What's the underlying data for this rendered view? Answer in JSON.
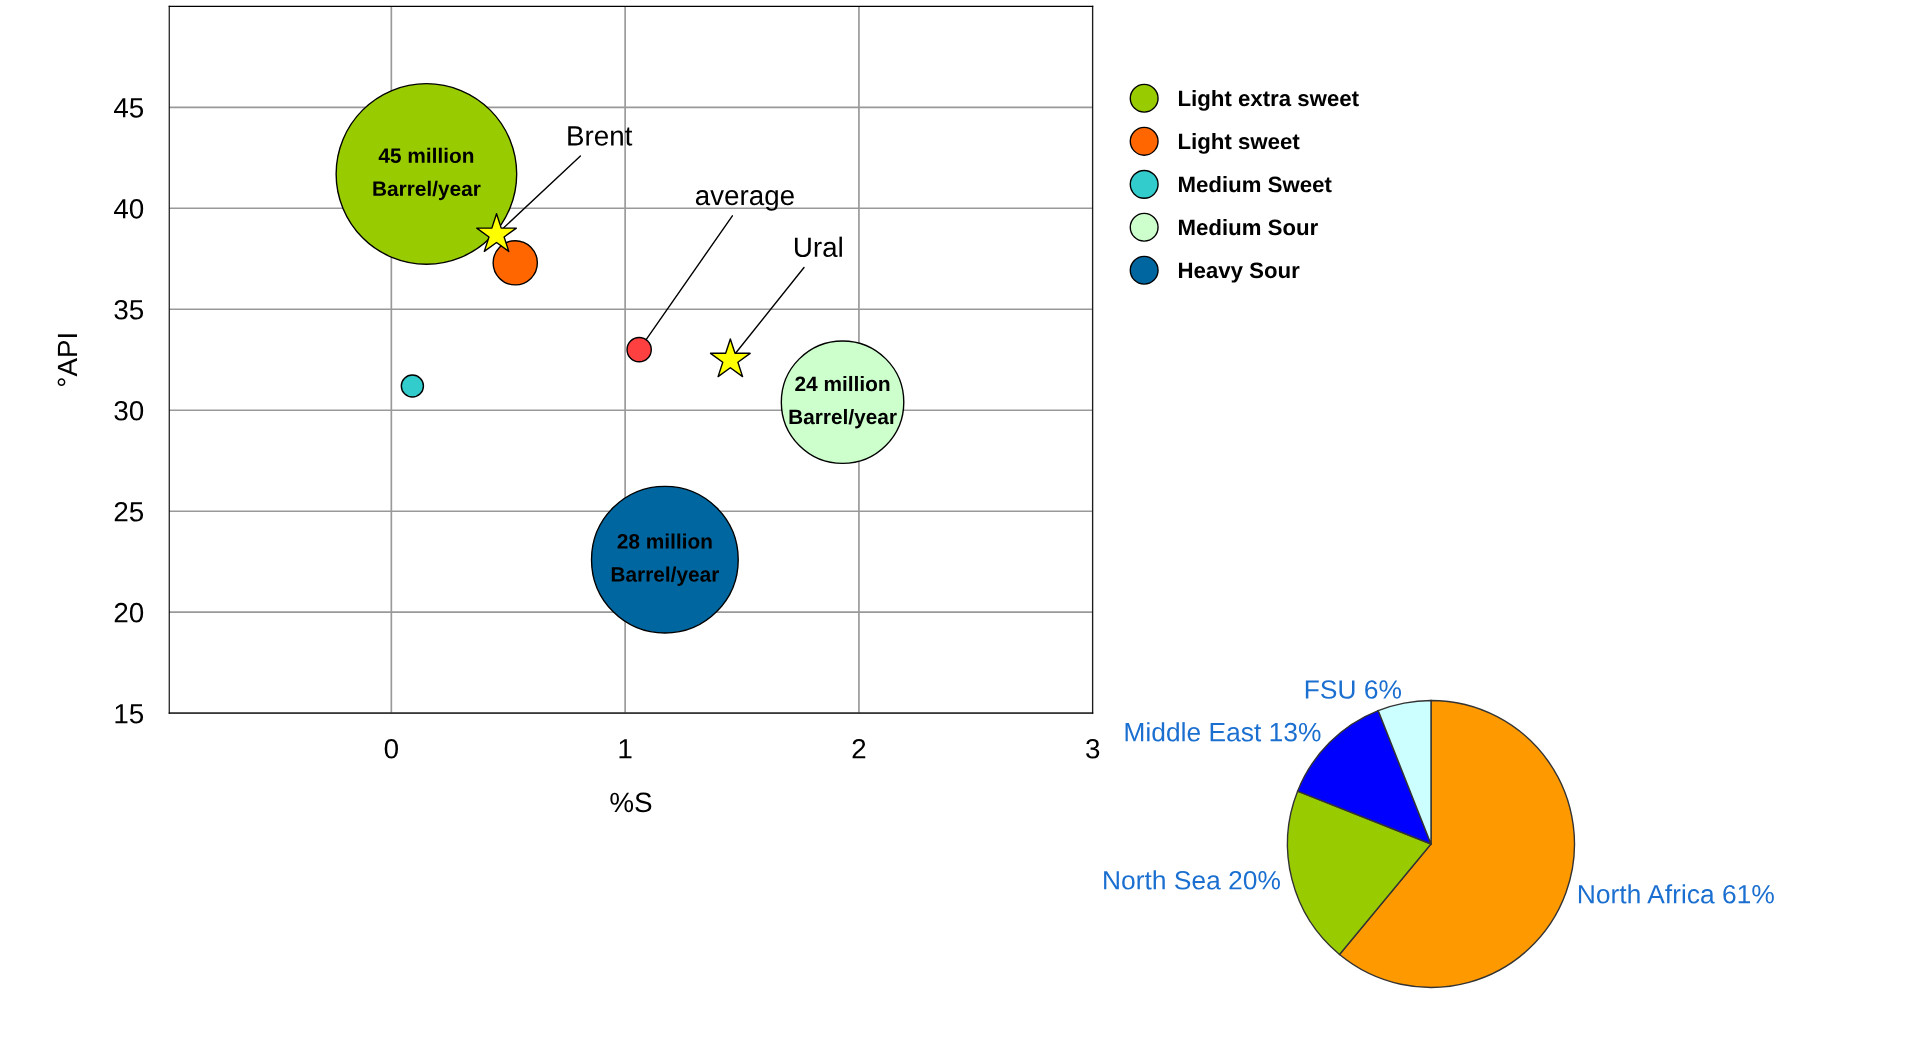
{
  "chart_data": [
    {
      "type": "bubble",
      "xlabel": "%S",
      "ylabel": "°API",
      "xlim": [
        -0.95,
        3
      ],
      "ylim": [
        15,
        50
      ],
      "xticks": [
        0,
        1,
        2,
        3
      ],
      "yticks": [
        15,
        20,
        25,
        30,
        35,
        40,
        45
      ],
      "grid": true,
      "legend": "top right",
      "marker": "circle",
      "series": [
        {
          "name": "Light extra sweet",
          "color": "#99cc00",
          "x": [
            0.15
          ],
          "values": [
            41.7
          ],
          "sizes": [
            1
          ]
        },
        {
          "name": "Light sweet",
          "color": "#ff6600",
          "x": [
            0.53
          ],
          "values": [
            37.3
          ],
          "sizes": [
            0.06
          ]
        },
        {
          "name": "Medium Sweet",
          "color": "#33cccc",
          "x": [
            0.09
          ],
          "values": [
            31.2
          ],
          "sizes": [
            0.015
          ]
        },
        {
          "name": "Medium Sour",
          "color": "#ccffcc",
          "x": [
            1.93
          ],
          "values": [
            30.4
          ],
          "sizes": [
            0.46
          ]
        },
        {
          "name": "Heavy Sour",
          "color": "#0066a0",
          "x": [
            1.17
          ],
          "values": [
            22.6
          ],
          "sizes": [
            0.66
          ]
        },
        {
          "color": "#ff4040",
          "x": [
            1.06
          ],
          "values": [
            33.0
          ],
          "sizes": [
            0.018
          ]
        },
        {
          "color": "#ffff00",
          "x": [
            0.45,
            1.45
          ],
          "values": [
            38.7,
            32.5
          ],
          "type": "scatter",
          "marker": "star"
        }
      ],
      "annotations": [
        {
          "text": "45 million\nBarrel/year",
          "x": 0.15,
          "y": 41.7
        },
        {
          "text": "24 million\nBarrel/year",
          "x": 1.93,
          "y": 30.4
        },
        {
          "text": "28 million\nBarrel/year",
          "x": 1.17,
          "y": 22.6
        },
        {
          "text": "Brent",
          "x": 0.45,
          "y": 38.7
        },
        {
          "text": "average",
          "x": 1.06,
          "y": 33.0
        },
        {
          "text": "Ural",
          "x": 1.45,
          "y": 32.5
        }
      ]
    },
    {
      "type": "pie",
      "categories": [
        "North Africa",
        "North Sea",
        "Middle East",
        "FSU"
      ],
      "values": [
        61,
        20,
        13,
        6
      ],
      "value_labels": [
        "61%",
        "20%",
        "13%",
        "6%"
      ],
      "colors": [
        "#ff9900",
        "#99cc00",
        "#0000ff",
        "#ccffff"
      ]
    }
  ]
}
